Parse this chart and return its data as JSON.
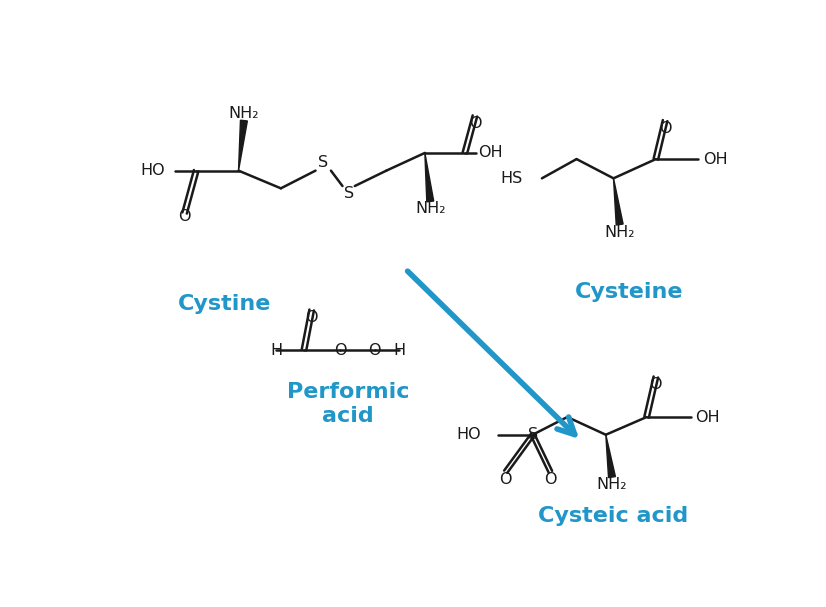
{
  "bg_color": "#ffffff",
  "line_color": "#1a1a1a",
  "label_color": "#2196c8",
  "arrow_color": "#2196c8",
  "lw": 1.8,
  "font_size_label": 16,
  "font_size_atom": 11.5,
  "cystine_label": "Cystine",
  "cysteine_label": "Cysteine",
  "performic_label": "Performic\nacid",
  "cysteic_label": "Cysteic acid",
  "figw": 8.26,
  "figh": 6.07,
  "dpi": 100
}
